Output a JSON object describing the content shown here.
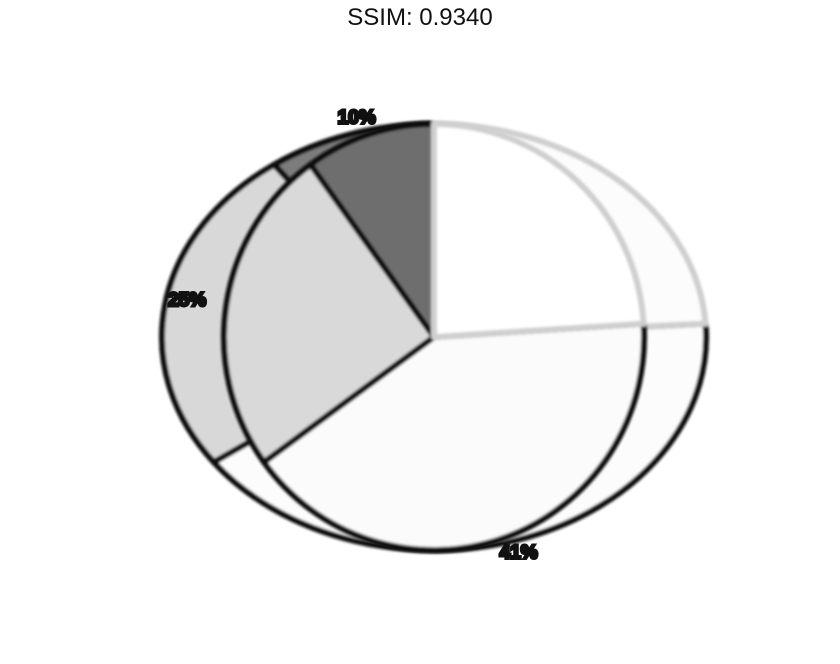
{
  "header": {
    "title": "SSIM: 0.9340"
  },
  "chart_data": {
    "type": "pie",
    "title": "SSIM: 0.9340",
    "slices": [
      {
        "label": "10%",
        "value": 10,
        "color": "#6e6e6e"
      },
      {
        "label": "25%",
        "value": 25,
        "color": "#d9d9d9"
      },
      {
        "label": "41%",
        "value": 41,
        "color": "#fbfbfb"
      },
      {
        "label": "",
        "value": 24,
        "color": "#ffffff"
      }
    ],
    "start_angle_deg": 90,
    "direction": "counterclockwise",
    "style": "blurred, doubled outline rendering"
  }
}
